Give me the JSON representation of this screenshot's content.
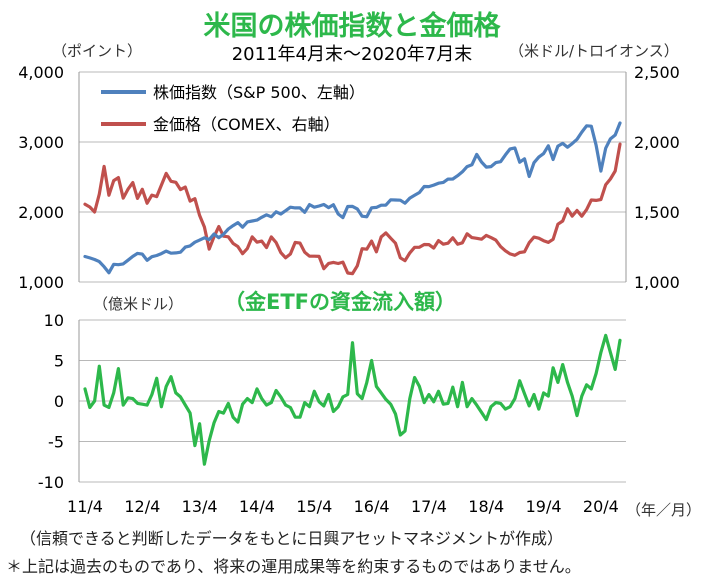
{
  "header": {
    "title": "米国の株価指数と金価格",
    "subtitle": "2011年4月末～2020年7月末"
  },
  "top_panel": {
    "left_unit": "（ポイント）",
    "right_unit": "（米ドル/トロイオンス）"
  },
  "bottom_panel": {
    "left_unit": "（億米ドル）",
    "title": "（金ETFの資金流入額）",
    "x_unit": "（年／月）"
  },
  "footnotes": {
    "source": "（信頼できると判断したデータをもとに日興アセットマネジメントが作成）",
    "disclaimer": "＊上記は過去のものであり、将来の運用成果等を約束するものではありません。"
  },
  "colors": {
    "sp500": "#4f81bd",
    "gold": "#c0504d",
    "etf": "#2db84b",
    "title": "#2db84b"
  },
  "chart_data": [
    {
      "type": "line",
      "x_start": "2011-04",
      "x_end": "2020-07",
      "frequency": "monthly",
      "x_tick_labels": [
        "11/4",
        "12/4",
        "13/4",
        "14/4",
        "15/4",
        "16/4",
        "17/4",
        "18/4",
        "19/4",
        "20/4"
      ],
      "y_left": {
        "label": "（ポイント）",
        "lim": [
          1000,
          4000
        ],
        "ticks": [
          "1,000",
          "2,000",
          "3,000",
          "4,000"
        ],
        "tick_values": [
          1000,
          2000,
          3000,
          4000
        ]
      },
      "y_right": {
        "label": "（米ドル/トロイオンス）",
        "lim": [
          1000,
          2500
        ],
        "ticks": [
          "1,000",
          "1,500",
          "2,000",
          "2,500"
        ],
        "tick_values": [
          1000,
          1500,
          2000,
          2500
        ]
      },
      "legend_position": "top-left",
      "series": [
        {
          "name": "株価指数（S&P 500、左軸）",
          "axis": "left",
          "values": [
            1364,
            1345,
            1321,
            1292,
            1219,
            1131,
            1253,
            1247,
            1258,
            1312,
            1366,
            1408,
            1398,
            1310,
            1362,
            1379,
            1406,
            1441,
            1412,
            1416,
            1426,
            1498,
            1515,
            1569,
            1598,
            1631,
            1606,
            1686,
            1633,
            1682,
            1757,
            1806,
            1848,
            1783,
            1859,
            1872,
            1884,
            1924,
            1960,
            1931,
            2003,
            1972,
            2018,
            2068,
            2059,
            2058,
            1995,
            2105,
            2068,
            2086,
            2107,
            2063,
            2104,
            1972,
            1920,
            2079,
            2080,
            2044,
            1940,
            1932,
            2060,
            2065,
            2097,
            2099,
            2174,
            2171,
            2168,
            2126,
            2199,
            2239,
            2279,
            2364,
            2363,
            2384,
            2412,
            2423,
            2470,
            2471,
            2519,
            2575,
            2648,
            2674,
            2823,
            2714,
            2641,
            2648,
            2705,
            2718,
            2816,
            2902,
            2914,
            2711,
            2760,
            2507,
            2704,
            2784,
            2834,
            2946,
            2750,
            2942,
            2980,
            2926,
            2977,
            3038,
            3141,
            3231,
            3226,
            2954,
            2585,
            2912,
            3044,
            3100,
            3271
          ]
        },
        {
          "name": "金価格（COMEX、右軸）",
          "axis": "right",
          "values": [
            1556,
            1536,
            1500,
            1628,
            1826,
            1620,
            1724,
            1746,
            1599,
            1663,
            1710,
            1597,
            1662,
            1563,
            1621,
            1610,
            1692,
            1776,
            1719,
            1712,
            1660,
            1678,
            1578,
            1595,
            1476,
            1393,
            1235,
            1323,
            1396,
            1327,
            1323,
            1276,
            1253,
            1202,
            1240,
            1322,
            1284,
            1292,
            1246,
            1322,
            1282,
            1210,
            1173,
            1200,
            1283,
            1278,
            1213,
            1184,
            1184,
            1183,
            1095,
            1133,
            1140,
            1132,
            1142,
            1064,
            1060,
            1116,
            1238,
            1234,
            1292,
            1216,
            1322,
            1351,
            1313,
            1277,
            1173,
            1152,
            1208,
            1248,
            1248,
            1268,
            1267,
            1242,
            1296,
            1270,
            1277,
            1316,
            1270,
            1280,
            1344,
            1317,
            1312,
            1306,
            1333,
            1317,
            1299,
            1253,
            1223,
            1201,
            1191,
            1211,
            1216,
            1281,
            1321,
            1313,
            1295,
            1283,
            1305,
            1413,
            1436,
            1523,
            1471,
            1511,
            1470,
            1517,
            1586,
            1583,
            1589,
            1694,
            1736,
            1793,
            1985
          ]
        }
      ]
    },
    {
      "type": "line",
      "title": "（金ETFの資金流入額）",
      "x_start": "2011-04",
      "x_end": "2020-07",
      "frequency": "monthly",
      "x_tick_labels": [
        "11/4",
        "12/4",
        "13/4",
        "14/4",
        "15/4",
        "16/4",
        "17/4",
        "18/4",
        "19/4",
        "20/4"
      ],
      "x_unit": "（年／月）",
      "y_label": "（億米ドル）",
      "ylim": [
        -10,
        10
      ],
      "y_ticks": [
        "-10",
        "-5",
        "0",
        "5",
        "10"
      ],
      "y_tick_values": [
        -10,
        -5,
        0,
        5,
        10
      ],
      "series": [
        {
          "name": "金ETFの資金流入額",
          "axis": "left",
          "values": [
            1.5,
            -0.8,
            0,
            4.3,
            -0.5,
            -0.8,
            1.0,
            4.0,
            -0.5,
            0.4,
            0.3,
            -0.3,
            -0.4,
            -0.5,
            0.8,
            2.8,
            -0.7,
            1.8,
            3.0,
            1.0,
            0.5,
            -0.5,
            -1.5,
            -5.5,
            -2.8,
            -7.8,
            -4.9,
            -2.7,
            -1.3,
            -1.5,
            -0.3,
            -2.0,
            -2.6,
            -0.4,
            0.3,
            -0.2,
            1.5,
            0.3,
            -0.5,
            -0.2,
            1.3,
            0.5,
            -0.5,
            -0.8,
            -2.0,
            -2.0,
            -0.2,
            -0.7,
            1.2,
            -0.1,
            -0.6,
            0.8,
            -1.3,
            -0.7,
            0.5,
            0.8,
            7.2,
            0.9,
            0.3,
            2.3,
            5.0,
            1.8,
            1.0,
            0.2,
            -0.4,
            -1.6,
            -4.2,
            -3.7,
            0.3,
            2.9,
            1.8,
            -0.2,
            0.8,
            -0.1,
            1.2,
            -0.4,
            -0.3,
            1.7,
            -0.7,
            2.3,
            -0.7,
            0.3,
            -0.5,
            -1.4,
            -2.3,
            -0.7,
            -0.2,
            -0.3,
            -1.0,
            -0.7,
            0.3,
            2.5,
            0.9,
            -0.6,
            0.8,
            -1.0,
            1.0,
            0.6,
            4.1,
            2.3,
            4.5,
            2.3,
            0.6,
            -1.8,
            0.6,
            2.0,
            1.5,
            3.4,
            6.0,
            8.1,
            6.0,
            3.9,
            7.5
          ]
        }
      ]
    }
  ]
}
